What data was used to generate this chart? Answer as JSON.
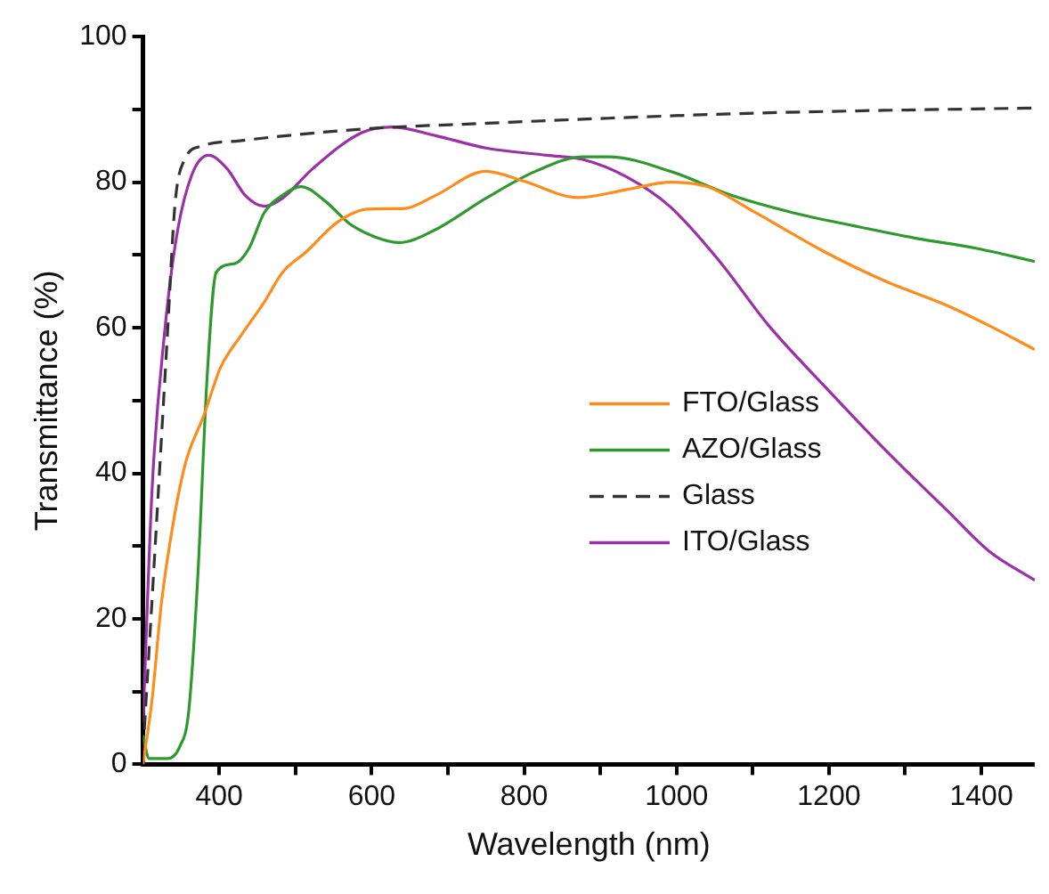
{
  "chart_data": {
    "type": "line",
    "xlabel": "Wavelength (nm)",
    "ylabel": "Transmittance (%)",
    "xlim": [
      300,
      1470
    ],
    "ylim": [
      0,
      100
    ],
    "xticks": [
      400,
      {
        "value": 500,
        "label": null
      },
      600,
      {
        "value": 700,
        "label": null
      },
      800,
      {
        "value": 900,
        "label": null
      },
      1000,
      {
        "value": 1100,
        "label": null
      },
      1200,
      {
        "value": 1300,
        "label": null
      },
      1400
    ],
    "yticks": [
      0,
      {
        "value": 10,
        "label": null
      },
      20,
      {
        "value": 30,
        "label": null
      },
      40,
      {
        "value": 50,
        "label": null
      },
      60,
      {
        "value": 70,
        "label": null
      },
      80,
      {
        "value": 90,
        "label": null
      },
      100
    ],
    "grid": false,
    "legend": "center right",
    "marker": "none",
    "series": [
      {
        "name": "FTO/Glass",
        "color": "#ff8c1a",
        "line_style": "solid",
        "x": [
          300,
          312,
          324,
          340,
          356,
          380,
          402,
          427,
          459,
          483,
          515,
          555,
          595,
          644,
          684,
          750,
          798,
          871,
          935,
          992,
          1040,
          1104,
          1193,
          1274,
          1354,
          1410,
          1470
        ],
        "values": [
          0,
          9,
          22,
          33.4,
          41.5,
          48,
          54.6,
          58.7,
          63.5,
          67.6,
          70.5,
          74.5,
          76.3,
          76.4,
          78.2,
          81.5,
          80.2,
          77.9,
          79,
          80,
          79.4,
          75.8,
          70.5,
          66.4,
          63.1,
          60.3,
          57
        ]
      },
      {
        "name": "AZO/Glass",
        "color": "#2e9a2e",
        "line_style": "solid",
        "x": [
          300,
          308,
          332,
          348,
          360,
          372,
          384,
          396,
          420,
          439,
          459,
          483,
          507,
          539,
          571,
          604,
          636,
          684,
          750,
          815,
          878,
          911,
          992,
          1072,
          1153,
          1233,
          1314,
          1394,
          1470
        ],
        "values": [
          4,
          0.8,
          0.8,
          2.4,
          7.3,
          26,
          53,
          67.6,
          68.8,
          70.9,
          75.8,
          78.2,
          79.4,
          77.4,
          74.3,
          72.5,
          71.7,
          73.5,
          77.8,
          81.5,
          83.5,
          83.5,
          81.5,
          78.2,
          75.8,
          74,
          72.3,
          70.9,
          69.1
        ]
      },
      {
        "name": "Glass",
        "color": "#333333",
        "line_style": "dashed",
        "x": [
          300,
          316,
          332,
          342,
          354,
          378,
          427,
          587,
          750,
          911,
          1072,
          1233,
          1470
        ],
        "values": [
          1.6,
          30,
          59,
          77,
          83,
          85,
          85.7,
          87.3,
          88.1,
          88.8,
          89.4,
          89.8,
          90.2
        ]
      },
      {
        "name": "ITO/Glass",
        "color": "#9b30a8",
        "line_style": "solid",
        "x": [
          300,
          312,
          328,
          344,
          364,
          386,
          410,
          434,
          459,
          483,
          523,
          587,
          627,
          684,
          750,
          830,
          878,
          935,
          992,
          1056,
          1121,
          1193,
          1274,
          1354,
          1410,
          1470
        ],
        "values": [
          5.7,
          38,
          59,
          72.5,
          81,
          83.7,
          81.9,
          78.2,
          76.7,
          77.8,
          81.9,
          86.8,
          87.6,
          86.4,
          84.7,
          83.7,
          83.1,
          80.7,
          76.6,
          69.2,
          60.3,
          52.1,
          43.2,
          35,
          29.3,
          25.3
        ]
      }
    ]
  }
}
